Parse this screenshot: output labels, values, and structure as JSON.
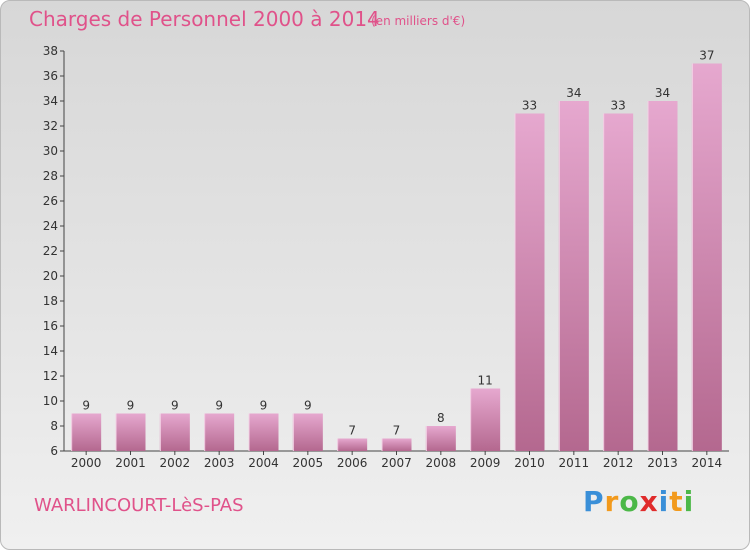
{
  "header": {
    "title": "Charges de Personnel 2000 à 2014",
    "subtitle": "(en milliers d'€)"
  },
  "footer": {
    "commune": "WARLINCOURT-LèS-PAS",
    "logo": {
      "letters": [
        "P",
        "r",
        "o",
        "x",
        "i",
        "t",
        "i"
      ],
      "colors": [
        "#3a8fd8",
        "#f29a1d",
        "#4cb848",
        "#e02b2b",
        "#3a8fd8",
        "#f29a1d",
        "#4cb848"
      ]
    }
  },
  "chart_data": {
    "type": "bar",
    "title": "Charges de Personnel 2000 à 2014",
    "subtitle": "(en milliers d'€)",
    "categories": [
      "2000",
      "2001",
      "2002",
      "2003",
      "2004",
      "2005",
      "2006",
      "2007",
      "2008",
      "2009",
      "2010",
      "2011",
      "2012",
      "2013",
      "2014"
    ],
    "values": [
      9,
      9,
      9,
      9,
      9,
      9,
      7,
      7,
      8,
      11,
      33,
      34,
      33,
      34,
      37
    ],
    "data_labels": [
      "9",
      "9",
      "9",
      "9",
      "9",
      "9",
      "7",
      "7",
      "8",
      "11",
      "33",
      "34",
      "33",
      "34",
      "37"
    ],
    "ylim": [
      6,
      38
    ],
    "yticks": [
      6,
      8,
      10,
      12,
      14,
      16,
      18,
      20,
      22,
      24,
      26,
      28,
      30,
      32,
      34,
      36,
      38
    ],
    "xlabel": "",
    "ylabel": "",
    "grid": false,
    "bar_color": "#d48ab8"
  }
}
